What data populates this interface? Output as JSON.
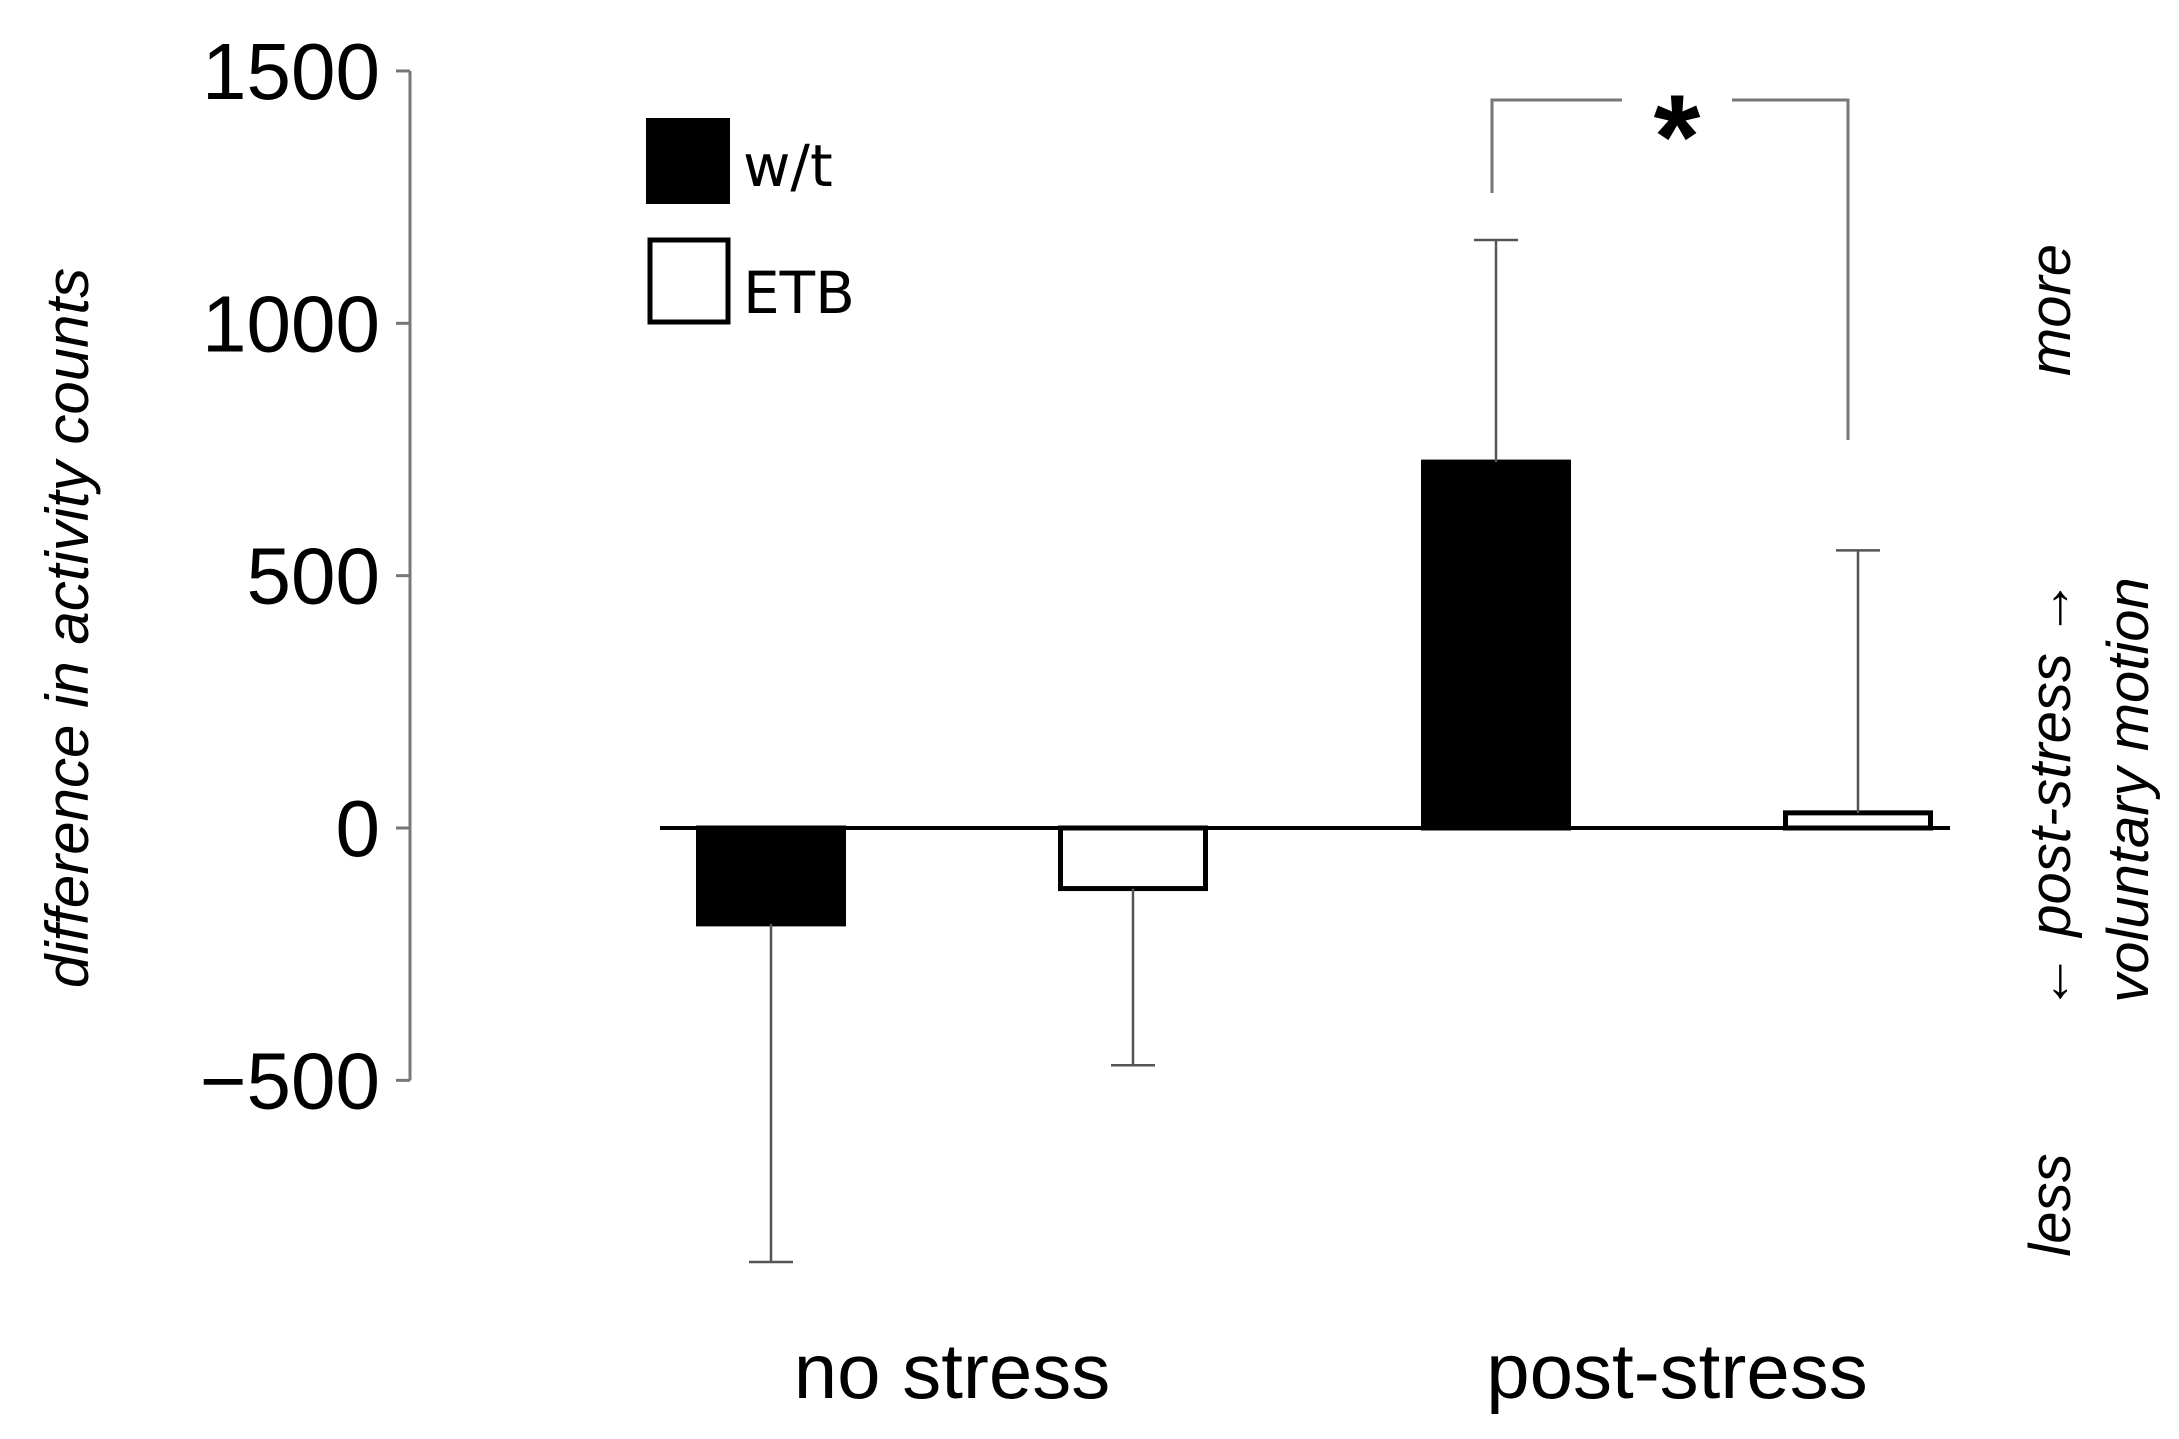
{
  "chart_data": {
    "type": "bar",
    "categories": [
      "no stress",
      "post-stress"
    ],
    "series": [
      {
        "name": "w/t",
        "values": [
          -190,
          725
        ],
        "error_plus": [
          0,
          440
        ],
        "error_minus": [
          670,
          0
        ],
        "fill": "#000000"
      },
      {
        "name": "ETB",
        "values": [
          -120,
          30
        ],
        "error_plus": [
          0,
          520
        ],
        "error_minus": [
          350,
          0
        ],
        "fill": "#ffffff"
      }
    ],
    "title": "",
    "xlabel": "",
    "ylabel": "difference in activity counts",
    "ylim": [
      -500,
      1500
    ],
    "yticks": [
      -500,
      0,
      500,
      1000,
      1500
    ],
    "ytick_labels": [
      "-500",
      "0",
      "500",
      "1000",
      "1500"
    ],
    "grid": false,
    "legend_position": "top-left",
    "significance": {
      "label": "*",
      "between": "post-stress w/t vs ETB"
    },
    "side_annotation": {
      "top": "more",
      "bottom": "less",
      "middle": "← post-stress →",
      "line2": "voluntary motion"
    }
  }
}
